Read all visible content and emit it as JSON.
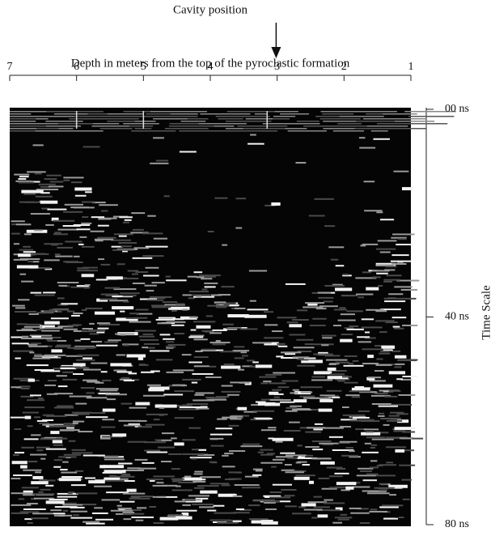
{
  "chart_data": {
    "type": "radargram",
    "title": "Depth in meters from the top of the pyroclastic formation",
    "annotations": [
      {
        "text": "Cavity position",
        "x": 3.1
      }
    ],
    "xlim": [
      7,
      1
    ],
    "xticks": [
      7,
      6,
      5,
      4,
      3,
      2,
      1
    ],
    "ylabel": "Time Scale",
    "ylim": [
      0,
      80
    ],
    "yticks": [
      {
        "value": 0,
        "label": "00 ns"
      },
      {
        "value": 40,
        "label": "40 ns"
      },
      {
        "value": 80,
        "label": "80 ns"
      }
    ]
  }
}
